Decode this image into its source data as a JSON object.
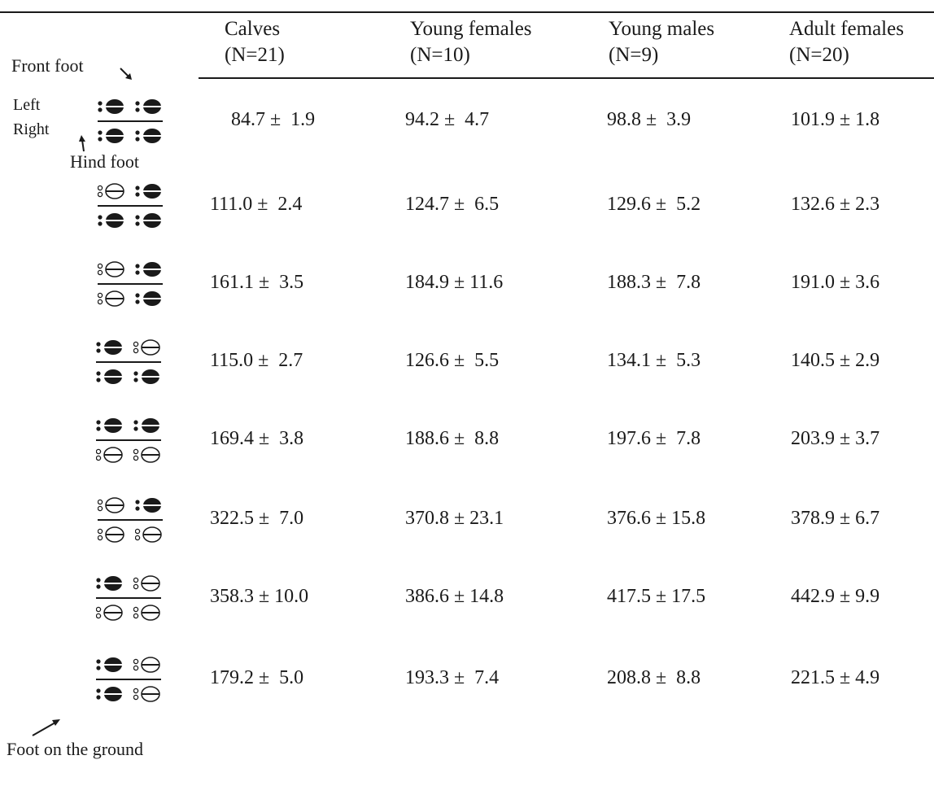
{
  "columns": [
    {
      "name": "Calves",
      "n": "(N=21)"
    },
    {
      "name": "Young females",
      "n": "(N=10)"
    },
    {
      "name": "Young males",
      "n": "(N=9)"
    },
    {
      "name": "Adult females",
      "n": "(N=20)"
    }
  ],
  "labels": {
    "front_foot": "Front foot",
    "left": "Left",
    "right": "Right",
    "hind_foot": "Hind foot",
    "foot_on_ground": "Foot on the ground"
  },
  "rows": [
    {
      "pattern": [
        "ground",
        "ground",
        "ground",
        "ground"
      ],
      "values": [
        "84.7 ±  1.9",
        "94.2 ±  4.7",
        "98.8 ±  3.9",
        "101.9 ± 1.8"
      ]
    },
    {
      "pattern": [
        "lifted",
        "ground",
        "ground",
        "ground"
      ],
      "values": [
        "111.0 ±  2.4",
        "124.7 ±  6.5",
        "129.6 ±  5.2",
        "132.6 ± 2.3"
      ]
    },
    {
      "pattern": [
        "lifted",
        "ground",
        "lifted",
        "ground"
      ],
      "values": [
        "161.1 ±  3.5",
        "184.9 ± 11.6",
        "188.3 ±  7.8",
        "191.0 ± 3.6"
      ]
    },
    {
      "pattern": [
        "ground",
        "lifted",
        "ground",
        "ground"
      ],
      "values": [
        "115.0 ±  2.7",
        "126.6 ±  5.5",
        "134.1 ±  5.3",
        "140.5 ± 2.9"
      ]
    },
    {
      "pattern": [
        "ground",
        "ground",
        "lifted",
        "lifted"
      ],
      "values": [
        "169.4 ±  3.8",
        "188.6 ±  8.8",
        "197.6 ±  7.8",
        "203.9 ± 3.7"
      ]
    },
    {
      "pattern": [
        "lifted",
        "ground",
        "lifted",
        "lifted"
      ],
      "values": [
        "322.5 ±  7.0",
        "370.8 ± 23.1",
        "376.6 ± 15.8",
        "378.9 ± 6.7"
      ]
    },
    {
      "pattern": [
        "ground",
        "lifted",
        "lifted",
        "lifted"
      ],
      "values": [
        "358.3 ± 10.0",
        "386.6 ± 14.8",
        "417.5 ± 17.5",
        "442.9 ± 9.9"
      ]
    },
    {
      "pattern": [
        "ground",
        "lifted",
        "ground",
        "lifted"
      ],
      "values": [
        "179.2 ±  5.0",
        "193.3 ±  7.4",
        "208.8 ±  8.8",
        "221.5 ± 4.9"
      ]
    }
  ]
}
